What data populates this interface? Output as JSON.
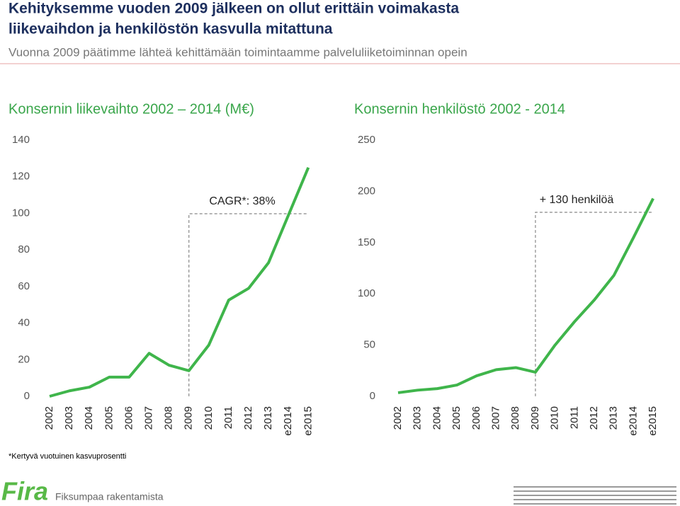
{
  "header": {
    "title_line1": "Kehityksemme vuoden 2009 jälkeen on ollut erittäin voimakasta",
    "title_line2": "liikevaihdon ja henkilöstön kasvulla mitattuna",
    "subtitle": "Vuonna 2009 päätimme lähteä kehittämään toimintaamme palveluliiketoiminnan opein"
  },
  "chart_data": [
    {
      "type": "line",
      "title": "Konsernin liikevaihto 2002 – 2014 (M€)",
      "categories": [
        "2002",
        "2003",
        "2004",
        "2005",
        "2006",
        "2007",
        "2008",
        "2009",
        "2010",
        "2011",
        "2012",
        "2013",
        "e2014",
        "e2015"
      ],
      "series": [
        {
          "color": "#3fb54b",
          "values": [
            0,
            3,
            5,
            10.5,
            10.5,
            23.5,
            17,
            14,
            28,
            52.6,
            59,
            73,
            99,
            125
          ]
        }
      ],
      "ylim": [
        0,
        140
      ],
      "yticks": [
        0,
        20,
        40,
        60,
        80,
        100,
        120,
        140
      ],
      "grid": false,
      "annotation": "CAGR*: 38%"
    },
    {
      "type": "line",
      "title": "Konsernin henkilöstö 2002 - 2014",
      "categories": [
        "2002",
        "2003",
        "2004",
        "2005",
        "2006",
        "2007",
        "2008",
        "2009",
        "2010",
        "2011",
        "2012",
        "2013",
        "e2014",
        "e2015"
      ],
      "series": [
        {
          "color": "#3fb54b",
          "values": [
            3.5,
            6,
            7.5,
            11,
            20,
            26,
            28,
            23.5,
            50,
            73,
            94,
            118,
            155,
            193
          ]
        }
      ],
      "ylim": [
        0,
        250
      ],
      "yticks": [
        0,
        50,
        100,
        150,
        200,
        250
      ],
      "grid": false,
      "annotation": "+ 130 henkilöä"
    }
  ],
  "footnote": "*Kertyvä vuotuinen kasvuprosentti",
  "logo": {
    "name": "Fira",
    "slogan": "Fiksumpaa rakentamista"
  }
}
